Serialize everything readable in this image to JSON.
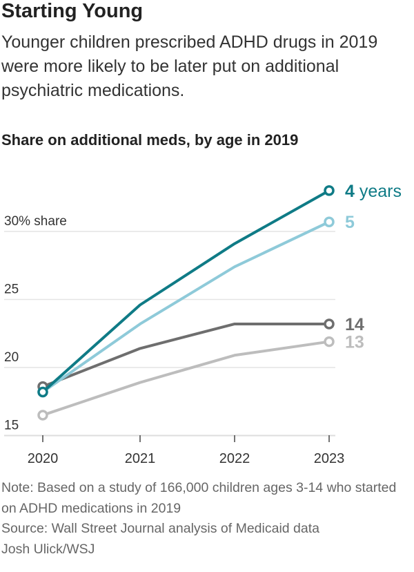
{
  "title": "Starting Young",
  "subtitle": "Younger children prescribed ADHD drugs in 2019 were more likely to be later put on additional psychiatric medications.",
  "chart_data": {
    "type": "line",
    "title": "Share on additional meds, by age in 2019",
    "x": [
      "2020",
      "2021",
      "2022",
      "2023"
    ],
    "ylim": [
      15,
      33.5
    ],
    "yticks": [
      {
        "value": 30,
        "label": "30% share"
      },
      {
        "value": 25,
        "label": "25"
      },
      {
        "value": 20,
        "label": "20"
      },
      {
        "value": 15,
        "label": "15"
      }
    ],
    "grid": true,
    "series": [
      {
        "name": "13",
        "label_prefix": "13",
        "label_suffix": "",
        "color": "#bdbdbd",
        "values": [
          16.5,
          18.9,
          20.9,
          21.9
        ]
      },
      {
        "name": "14",
        "label_prefix": "14",
        "label_suffix": "",
        "color": "#6e6e6e",
        "values": [
          18.6,
          21.4,
          23.2,
          23.2
        ]
      },
      {
        "name": "5",
        "label_prefix": "5",
        "label_suffix": "",
        "color": "#8ecad9",
        "values": [
          18.2,
          23.2,
          27.4,
          30.7
        ]
      },
      {
        "name": "4 years",
        "label_prefix": "4",
        "label_suffix": " years",
        "color": "#0f7b86",
        "values": [
          18.2,
          24.6,
          29.1,
          33.0
        ]
      }
    ]
  },
  "notes": {
    "note": "Note: Based on a study of 166,000 children ages 3-14 who started on ADHD medications in 2019",
    "source": "Source: Wall Street Journal analysis of Medicaid data",
    "credit": "Josh Ulick/WSJ"
  }
}
